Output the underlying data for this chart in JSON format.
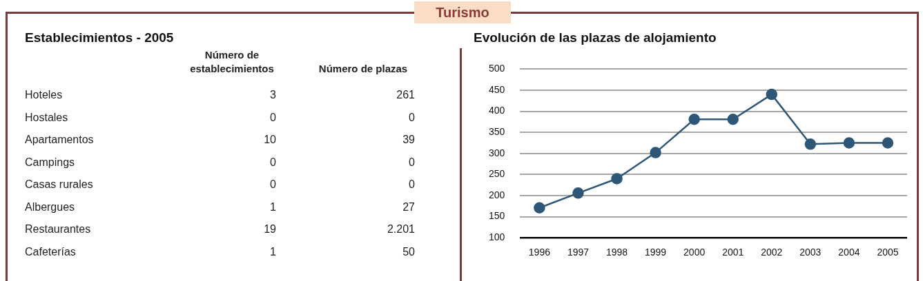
{
  "chart_data": [
    {
      "type": "other",
      "title": "Turismo"
    },
    {
      "type": "other",
      "title": "Establecimientos - 2005",
      "categories": [
        "Hoteles",
        "Hostales",
        "Apartamentos",
        "Campings",
        "Casas rurales",
        "Albergues",
        "Restaurantes",
        "Cafeterías"
      ],
      "series": [
        {
          "name": "Número de establecimientos",
          "values": [
            3,
            0,
            10,
            0,
            0,
            1,
            19,
            1
          ],
          "value_labels": [
            "3",
            "0",
            "10",
            "0",
            "0",
            "1",
            "19",
            "1"
          ]
        },
        {
          "name": "Número de plazas",
          "values": [
            261,
            0,
            39,
            0,
            0,
            27,
            2201,
            50
          ],
          "value_labels": [
            "261",
            "0",
            "39",
            "0",
            "0",
            "27",
            "2.201",
            "50"
          ]
        }
      ]
    },
    {
      "type": "line",
      "title": "Evolución de las plazas de alojamiento",
      "categories": [
        "1996",
        "1997",
        "1998",
        "1999",
        "2000",
        "2001",
        "2002",
        "2003",
        "2004",
        "2005"
      ],
      "series": [
        {
          "color": "#2e5777",
          "values": [
            171,
            206,
            240,
            302,
            381,
            381,
            440,
            322,
            325,
            325
          ]
        }
      ],
      "ylim": [
        100,
        500
      ],
      "yticks": [
        100,
        150,
        200,
        250,
        300,
        350,
        400,
        450,
        500
      ],
      "grid": "y",
      "marker": "circle",
      "line_style": "solid"
    }
  ]
}
